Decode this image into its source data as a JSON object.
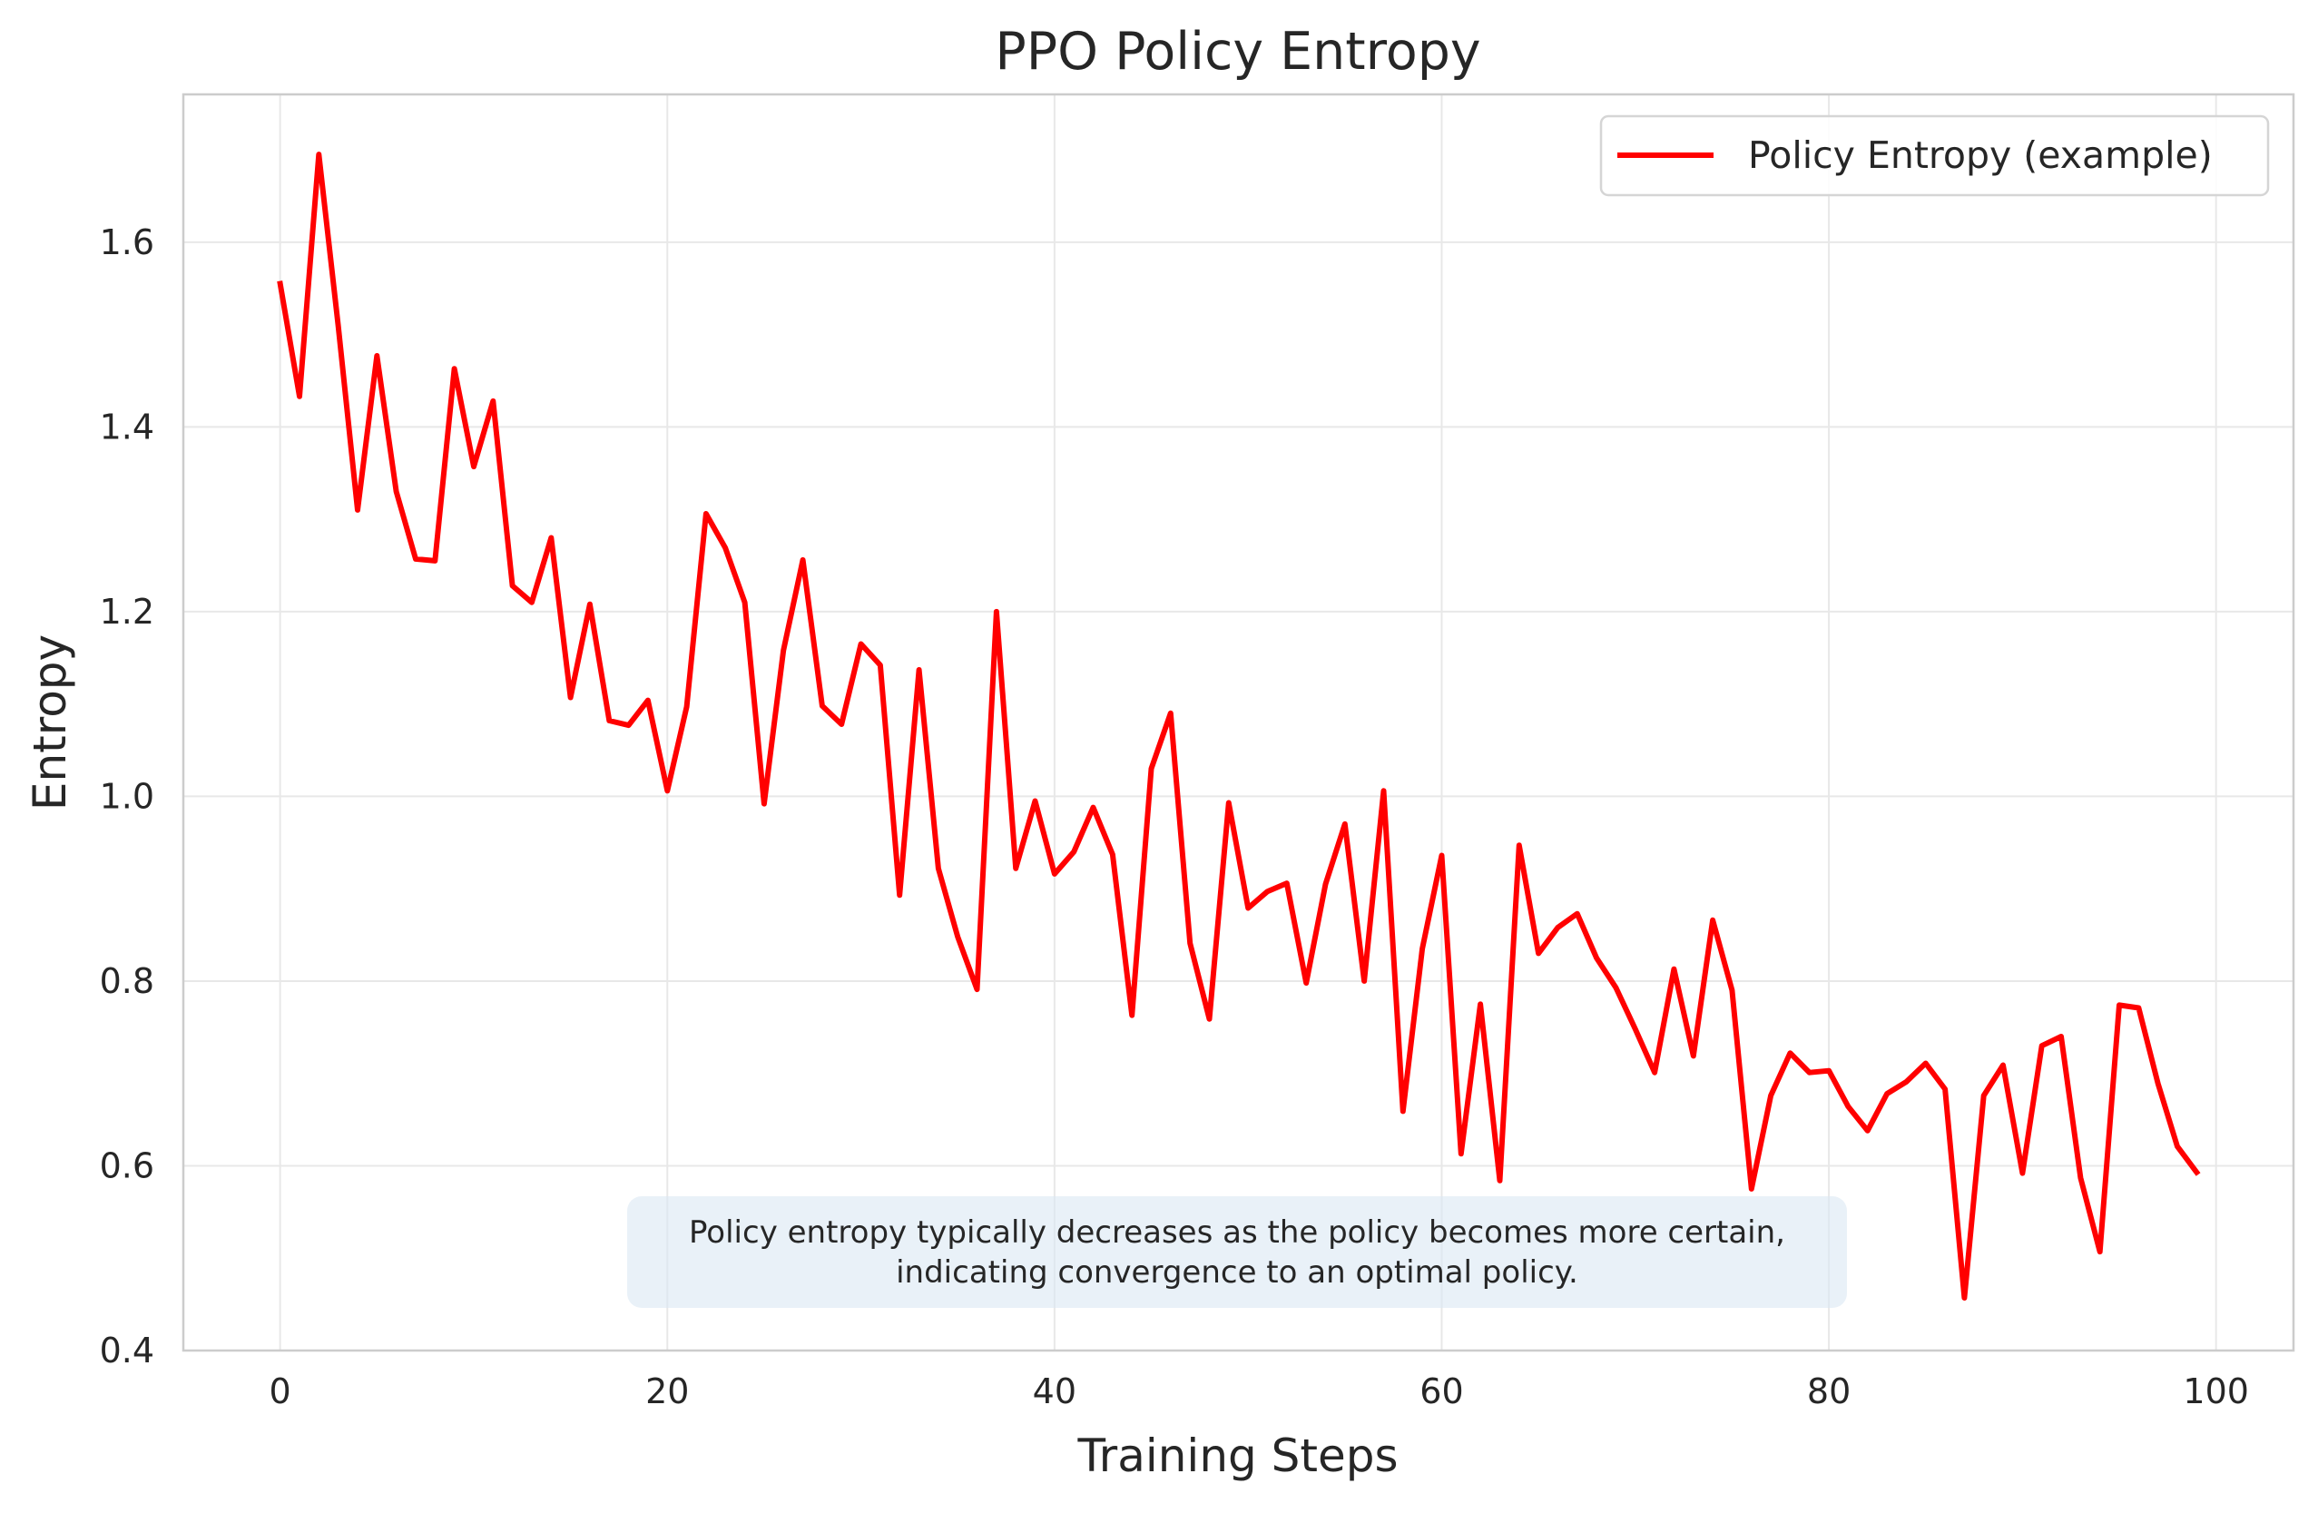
{
  "chart_data": {
    "type": "line",
    "title": "PPO Policy Entropy",
    "xlabel": "Training Steps",
    "ylabel": "Entropy",
    "xlim": [
      -5,
      104
    ],
    "ylim": [
      0.4,
      1.76
    ],
    "xticks": [
      0,
      20,
      40,
      60,
      80,
      100
    ],
    "yticks": [
      0.4,
      0.6,
      0.8,
      1.0,
      1.2,
      1.4,
      1.6
    ],
    "grid": true,
    "legend_position": "top-right",
    "annotation": [
      "Policy entropy typically decreases as the policy becomes more certain,",
      "indicating convergence to an optimal policy."
    ],
    "series": [
      {
        "name": "Policy Entropy (example)",
        "color": "#ff0000",
        "x": [
          0,
          1,
          2,
          3,
          4,
          5,
          6,
          7,
          8,
          9,
          10,
          11,
          12,
          13,
          14,
          15,
          16,
          17,
          18,
          19,
          20,
          21,
          22,
          23,
          24,
          25,
          26,
          27,
          28,
          29,
          30,
          31,
          32,
          33,
          34,
          35,
          36,
          37,
          38,
          39,
          40,
          41,
          42,
          43,
          44,
          45,
          46,
          47,
          48,
          49,
          50,
          51,
          52,
          53,
          54,
          55,
          56,
          57,
          58,
          59,
          60,
          61,
          62,
          63,
          64,
          65,
          66,
          67,
          68,
          69,
          70,
          71,
          72,
          73,
          74,
          75,
          76,
          77,
          78,
          79,
          80,
          81,
          82,
          83,
          84,
          85,
          86,
          87,
          88,
          89,
          90,
          91,
          92,
          93,
          94,
          95,
          96,
          97,
          98,
          99
        ],
        "y": [
          1.555,
          1.433,
          1.695,
          1.51,
          1.31,
          1.477,
          1.33,
          1.257,
          1.255,
          1.463,
          1.357,
          1.428,
          1.228,
          1.21,
          1.28,
          1.107,
          1.208,
          1.082,
          1.077,
          1.104,
          1.006,
          1.097,
          1.306,
          1.269,
          1.21,
          0.992,
          1.158,
          1.256,
          1.098,
          1.078,
          1.165,
          1.142,
          0.893,
          1.137,
          0.922,
          0.848,
          0.791,
          1.2,
          0.922,
          0.995,
          0.916,
          0.94,
          0.988,
          0.937,
          0.763,
          1.03,
          1.09,
          0.841,
          0.759,
          0.993,
          0.879,
          0.897,
          0.906,
          0.798,
          0.905,
          0.97,
          0.8,
          1.006,
          0.659,
          0.835,
          0.936,
          0.613,
          0.775,
          0.584,
          0.947,
          0.83,
          0.858,
          0.873,
          0.825,
          0.793,
          0.748,
          0.701,
          0.813,
          0.719,
          0.866,
          0.79,
          0.575,
          0.676,
          0.722,
          0.701,
          0.703,
          0.664,
          0.638,
          0.678,
          0.691,
          0.711,
          0.683,
          0.457,
          0.676,
          0.709,
          0.592,
          0.73,
          0.74,
          0.587,
          0.507,
          0.774,
          0.771,
          0.689,
          0.621,
          0.593
        ]
      }
    ]
  }
}
